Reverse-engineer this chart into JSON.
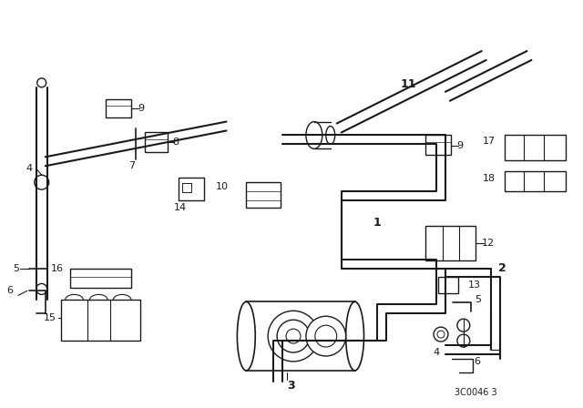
{
  "bg_color": "#ffffff",
  "line_color": "#1a1a1a",
  "fig_width": 6.4,
  "fig_height": 4.48,
  "dpi": 100,
  "watermark": "3C0046 3"
}
